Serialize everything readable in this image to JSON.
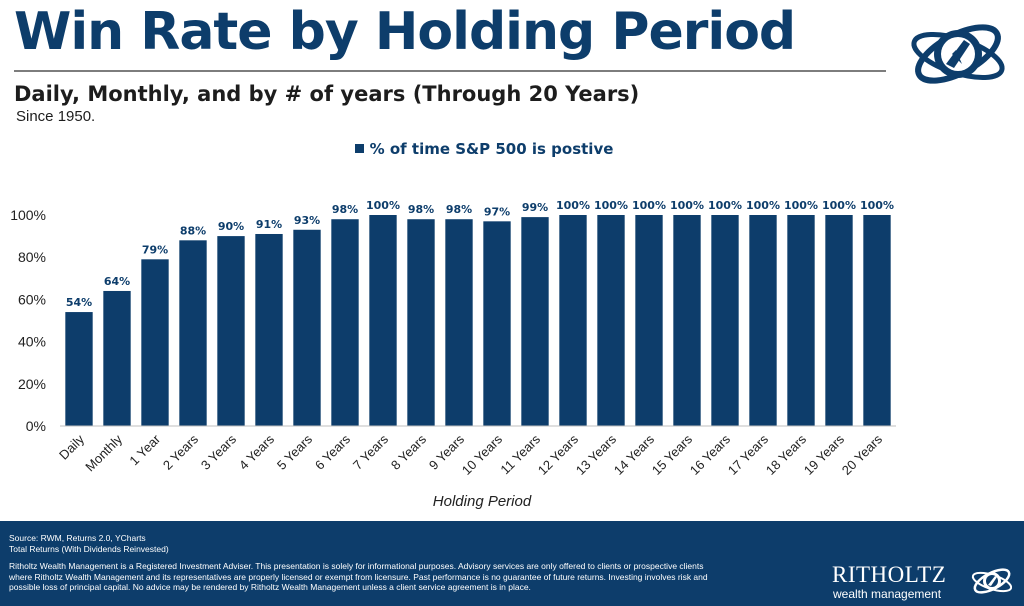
{
  "header": {
    "title": "Win Rate by Holding Period",
    "subtitle": "Daily, Monthly, and by # of years (Through 20 Years)",
    "since": "Since 1950."
  },
  "colors": {
    "bar": "#0d3d6b",
    "title": "#0d3d6b",
    "footer_bg": "#0d3d6b"
  },
  "chart_data": {
    "type": "bar",
    "legend": "% of time S&P 500 is postive",
    "legend_position": "top-center",
    "xlabel": "Holding Period",
    "ylabel": "",
    "ylim": [
      0,
      100
    ],
    "yticks": [
      0,
      20,
      40,
      60,
      80,
      100
    ],
    "ytick_labels": [
      "0%",
      "20%",
      "40%",
      "60%",
      "80%",
      "100%"
    ],
    "grid": false,
    "categories": [
      "Daily",
      "Monthly",
      "1 Year",
      "2 Years",
      "3 Years",
      "4 Years",
      "5 Years",
      "6 Years",
      "7 Years",
      "8 Years",
      "9 Years",
      "10 Years",
      "11 Years",
      "12 Years",
      "13 Years",
      "14 Years",
      "15 Years",
      "16 Years",
      "17 Years",
      "18 Years",
      "19 Years",
      "20 Years"
    ],
    "series": [
      {
        "name": "% of time S&P 500 is postive",
        "values": [
          54,
          64,
          79,
          88,
          90,
          91,
          93,
          98,
          100,
          98,
          98,
          97,
          99,
          100,
          100,
          100,
          100,
          100,
          100,
          100,
          100,
          100
        ]
      }
    ],
    "data_labels": [
      "54%",
      "64%",
      "79%",
      "88%",
      "90%",
      "91%",
      "93%",
      "98%",
      "100%",
      "98%",
      "98%",
      "97%",
      "99%",
      "100%",
      "100%",
      "100%",
      "100%",
      "100%",
      "100%",
      "100%",
      "100%",
      "100%"
    ]
  },
  "footer": {
    "source_line1": "Source: RWM, Returns 2.0, YCharts",
    "source_line2": "Total Returns (With Dividends Reinvested)",
    "disclaimer": "Ritholtz Wealth Management is a Registered Investment Adviser. This presentation is solely for informational purposes. Advisory services are only offered to clients or prospective clients where Ritholtz Wealth Management and its representatives are properly licensed or exempt from licensure. Past performance is no guarantee of future returns. Investing involves risk and possible loss of principal capital. No advice may be rendered by Ritholtz Wealth Management unless a client service agreement is in place.",
    "brand_name": "RITHOLTZ",
    "brand_sub": "wealth management"
  },
  "icons": {
    "header_logo": "ritholtz-orbit-logo-icon",
    "footer_logo": "ritholtz-small-logo-icon"
  }
}
